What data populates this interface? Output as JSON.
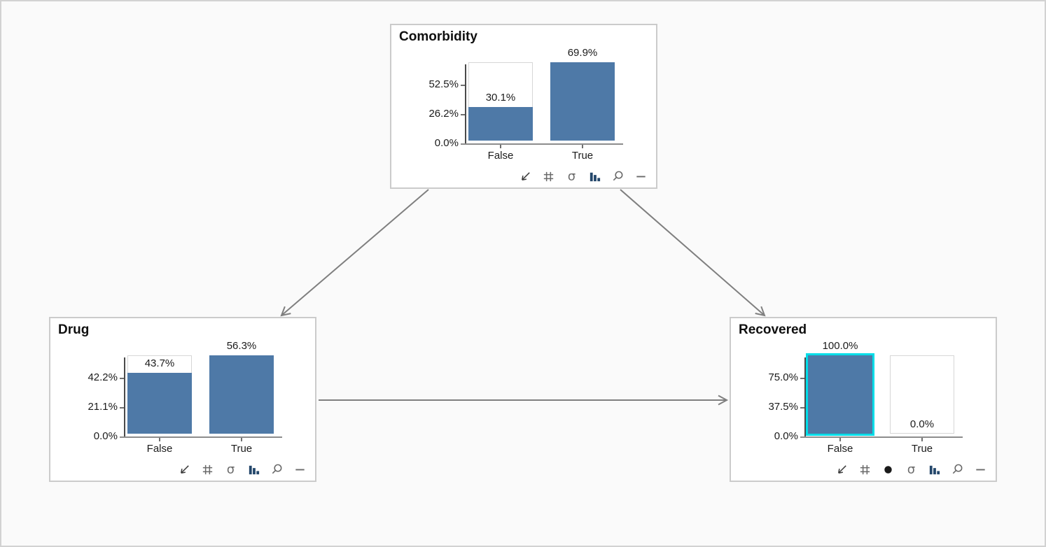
{
  "app": {
    "background": "#fafafa",
    "frame_border": "#d2d2d2"
  },
  "colors": {
    "node_bg": "#ffffff",
    "node_border": "#cbcbcb",
    "bar_fill": "#4e79a7",
    "ghost_bar_border": "#d6d6d6",
    "evidence_outline": "#00dde8",
    "y_axis": "#4a4a4a",
    "baseline": "#8c8c8c",
    "arrow": "#7f7f7f",
    "icon_gray": "#6a6a6a",
    "icon_dark": "#3c3c3c",
    "icon_chart_blue": "#24476b",
    "text": "#1b1b1b"
  },
  "icons": {
    "sigma_glyph": "σ"
  },
  "nodes": [
    {
      "id": "Comorbidity",
      "title": "Comorbidity",
      "evidence_set": false,
      "chart_data": {
        "type": "bar",
        "categories": [
          "False",
          "True"
        ],
        "values": [
          30.1,
          69.9
        ],
        "value_labels": [
          "30.1%",
          "69.9%"
        ],
        "ymax": 69.9,
        "ylim": [
          0,
          69.9
        ],
        "y_ticks": [
          {
            "value": 0.0,
            "label": "0.0%"
          },
          {
            "value": 26.2,
            "label": "26.2%"
          },
          {
            "value": 52.5,
            "label": "52.5%"
          }
        ],
        "highlighted_bar": null,
        "grid": false,
        "legend": false
      },
      "toolbar": [
        "pan-arrow",
        "grid",
        "sigma",
        "bar-chart",
        "zoom",
        "minimize"
      ]
    },
    {
      "id": "Drug",
      "title": "Drug",
      "evidence_set": false,
      "chart_data": {
        "type": "bar",
        "categories": [
          "False",
          "True"
        ],
        "values": [
          43.7,
          56.3
        ],
        "value_labels": [
          "43.7%",
          "56.3%"
        ],
        "ymax": 56.3,
        "ylim": [
          0,
          56.3
        ],
        "y_ticks": [
          {
            "value": 0.0,
            "label": "0.0%"
          },
          {
            "value": 21.1,
            "label": "21.1%"
          },
          {
            "value": 42.2,
            "label": "42.2%"
          }
        ],
        "highlighted_bar": null,
        "grid": false,
        "legend": false
      },
      "toolbar": [
        "pan-arrow",
        "grid",
        "sigma",
        "bar-chart",
        "zoom",
        "minimize"
      ]
    },
    {
      "id": "Recovered",
      "title": "Recovered",
      "evidence_set": true,
      "chart_data": {
        "type": "bar",
        "categories": [
          "False",
          "True"
        ],
        "values": [
          100.0,
          0.0
        ],
        "value_labels": [
          "100.0%",
          "0.0%"
        ],
        "ymax": 100.0,
        "ylim": [
          0,
          100
        ],
        "y_ticks": [
          {
            "value": 0.0,
            "label": "0.0%"
          },
          {
            "value": 37.5,
            "label": "37.5%"
          },
          {
            "value": 75.0,
            "label": "75.0%"
          }
        ],
        "highlighted_bar": 0,
        "grid": false,
        "legend": false
      },
      "toolbar": [
        "pan-arrow",
        "grid",
        "evidence-dot",
        "sigma",
        "bar-chart",
        "zoom",
        "minimize"
      ]
    }
  ],
  "edges": [
    {
      "from": "Comorbidity",
      "to": "Drug"
    },
    {
      "from": "Comorbidity",
      "to": "Recovered"
    },
    {
      "from": "Drug",
      "to": "Recovered"
    }
  ],
  "chart_data": [
    {
      "node": "Comorbidity",
      "type": "bar",
      "categories": [
        "False",
        "True"
      ],
      "values": [
        30.1,
        69.9
      ]
    },
    {
      "node": "Drug",
      "type": "bar",
      "categories": [
        "False",
        "True"
      ],
      "values": [
        43.7,
        56.3
      ]
    },
    {
      "node": "Recovered",
      "type": "bar",
      "categories": [
        "False",
        "True"
      ],
      "values": [
        100.0,
        0.0
      ]
    }
  ]
}
